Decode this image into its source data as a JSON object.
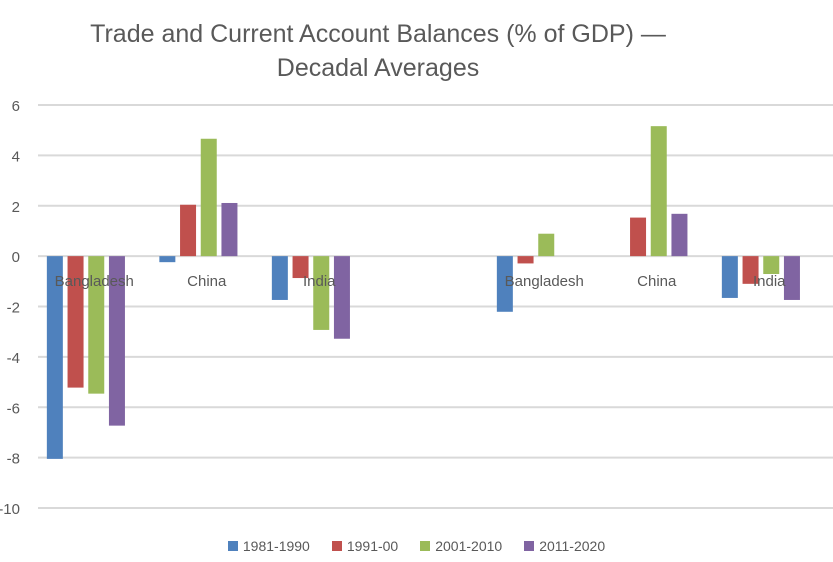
{
  "chart_data": {
    "type": "bar",
    "title": "Trade and Current Account Balances (% of GDP) —",
    "subtitle": "Decadal Averages",
    "categories": [
      "Bangladesh",
      "China",
      "India",
      "",
      "Bangladesh",
      "China",
      "India"
    ],
    "series": [
      {
        "name": "1981-1990",
        "color": "#4F81BD",
        "values": [
          -8.05,
          -0.24,
          -1.74,
          null,
          -2.21,
          0,
          -1.66
        ]
      },
      {
        "name": "1991-00",
        "color": "#C0504D",
        "values": [
          -5.22,
          2.04,
          -0.87,
          null,
          -0.29,
          1.53,
          -1.1
        ]
      },
      {
        "name": "2001-2010",
        "color": "#9BBB59",
        "values": [
          -5.46,
          4.66,
          -2.93,
          null,
          0.89,
          5.16,
          -0.71
        ]
      },
      {
        "name": "2011-2020",
        "color": "#8064A2",
        "values": [
          -6.73,
          2.11,
          -3.28,
          null,
          0,
          1.68,
          -1.74
        ]
      }
    ],
    "xlabel": "",
    "ylabel": "",
    "ylim": [
      -10,
      6
    ],
    "yticks": [
      6,
      4,
      2,
      0,
      -2,
      -4,
      -6,
      -8,
      -10
    ],
    "grid": true,
    "legend_position": "bottom"
  }
}
